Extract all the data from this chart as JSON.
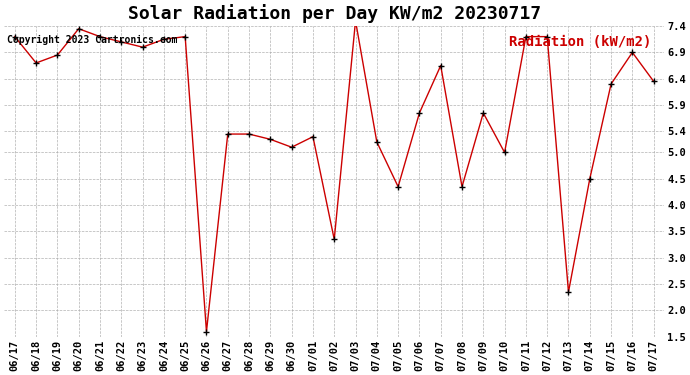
{
  "title": "Solar Radiation per Day KW/m2 20230717",
  "copyright_text": "Copyright 2023 Cartronics.com",
  "legend_label": "Radiation (kW/m2)",
  "dates": [
    "06/17",
    "06/18",
    "06/19",
    "06/20",
    "06/21",
    "06/22",
    "06/23",
    "06/24",
    "06/25",
    "06/26",
    "06/27",
    "06/28",
    "06/29",
    "06/30",
    "07/01",
    "07/02",
    "07/03",
    "07/04",
    "07/05",
    "07/06",
    "07/07",
    "07/08",
    "07/09",
    "07/10",
    "07/11",
    "07/12",
    "07/13",
    "07/14",
    "07/15",
    "07/16",
    "07/17"
  ],
  "values": [
    7.2,
    6.7,
    6.85,
    7.35,
    7.2,
    7.1,
    7.0,
    7.15,
    7.2,
    1.6,
    5.35,
    5.35,
    5.25,
    5.1,
    5.3,
    3.35,
    7.5,
    5.2,
    4.35,
    5.75,
    6.65,
    4.35,
    5.75,
    5.0,
    7.2,
    7.2,
    2.35,
    4.5,
    6.3,
    6.9,
    6.35
  ],
  "line_color": "#cc0000",
  "marker_color": "#000000",
  "background_color": "#ffffff",
  "grid_color": "#aaaaaa",
  "ylim": [
    1.5,
    7.4
  ],
  "yticks": [
    1.5,
    2.0,
    2.5,
    3.0,
    3.5,
    4.0,
    4.5,
    5.0,
    5.4,
    5.9,
    6.4,
    6.9,
    7.4
  ],
  "title_fontsize": 13,
  "copyright_fontsize": 7,
  "legend_fontsize": 10,
  "tick_fontsize": 7.5,
  "figwidth": 6.9,
  "figheight": 3.75,
  "dpi": 100
}
